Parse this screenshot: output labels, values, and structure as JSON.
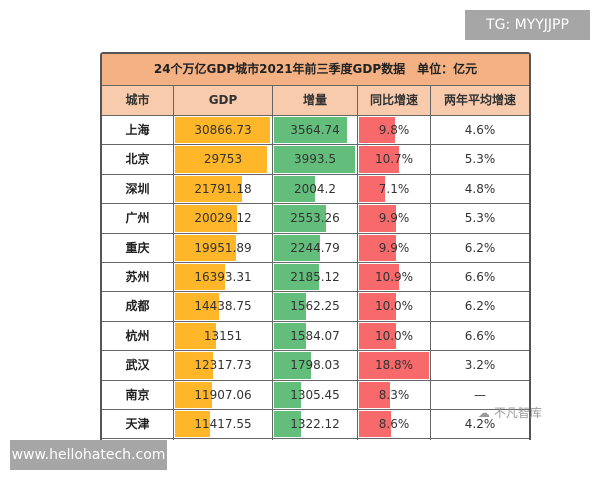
{
  "title": "24个万亿GDP城市2021年前三季度GDP数据　单位：亿元",
  "headers": [
    "城市",
    "GDP",
    "增量",
    "同比增速",
    "两年平均增速"
  ],
  "colors": {
    "gdp_bar": "#ffb628",
    "increase_bar": "#63be7b",
    "growth_bar": "#f8696b",
    "title_bg": "#f4b183",
    "header_bg": "#f8cbad"
  },
  "rows": [
    {
      "city": "上海",
      "gdp": "30866.73",
      "inc": "3564.74",
      "yoy": "9.8%",
      "avg": "4.6%"
    },
    {
      "city": "北京",
      "gdp": "29753",
      "inc": "3993.5",
      "yoy": "10.7%",
      "avg": "5.3%"
    },
    {
      "city": "深圳",
      "gdp": "21791.18",
      "inc": "2004.2",
      "yoy": "7.1%",
      "avg": "4.8%"
    },
    {
      "city": "广州",
      "gdp": "20029.12",
      "inc": "2553.26",
      "yoy": "9.9%",
      "avg": "5.3%"
    },
    {
      "city": "重庆",
      "gdp": "19951.89",
      "inc": "2244.79",
      "yoy": "9.9%",
      "avg": "6.2%"
    },
    {
      "city": "苏州",
      "gdp": "16393.31",
      "inc": "2185.12",
      "yoy": "10.9%",
      "avg": "6.6%"
    },
    {
      "city": "成都",
      "gdp": "14438.75",
      "inc": "1562.25",
      "yoy": "10.0%",
      "avg": "6.2%"
    },
    {
      "city": "杭州",
      "gdp": "13151",
      "inc": "1584.07",
      "yoy": "10.0%",
      "avg": "6.6%"
    },
    {
      "city": "武汉",
      "gdp": "12317.73",
      "inc": "1798.03",
      "yoy": "18.8%",
      "avg": "3.2%"
    },
    {
      "city": "南京",
      "gdp": "11907.06",
      "inc": "1305.45",
      "yoy": "8.3%",
      "avg": "—"
    },
    {
      "city": "天津",
      "gdp": "11417.55",
      "inc": "1322.12",
      "yoy": "8.6%",
      "avg": "4.2%"
    }
  ],
  "watermarks": {
    "tg": "TG: MYYJJPP",
    "site": "www.hellohatech.com",
    "wechat": "不凡智库"
  }
}
